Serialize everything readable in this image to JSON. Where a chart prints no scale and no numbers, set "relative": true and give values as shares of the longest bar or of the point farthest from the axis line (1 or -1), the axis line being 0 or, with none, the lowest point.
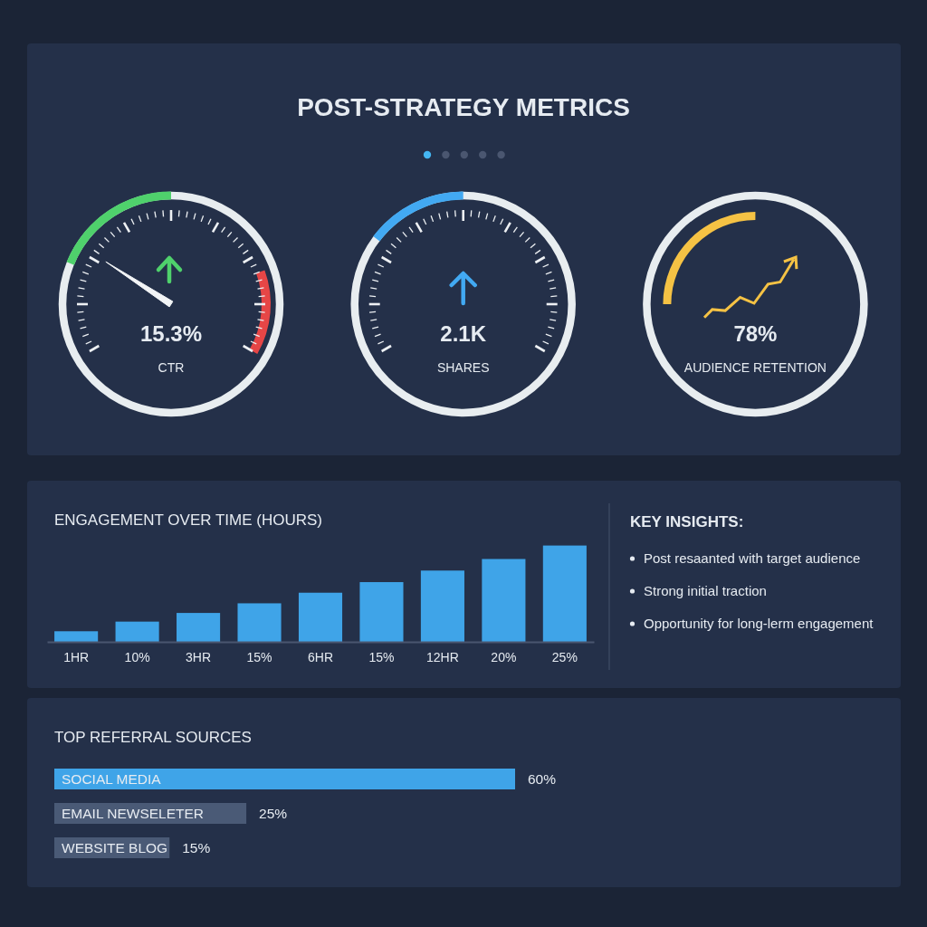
{
  "chart_data": [
    {
      "type": "other",
      "title": "POST-STRATEGY METRICS",
      "annotations": [
        "15.3%",
        "CTR",
        "2.1K",
        "SHARES",
        "78%",
        "AUDIENCE RETENTION"
      ]
    },
    {
      "type": "bar",
      "title": "ENGAGEMENT OVER TIME (HOURS)",
      "categories": [
        "1HR",
        "10%",
        "3HR",
        "15%",
        "6HR",
        "15%",
        "12HR",
        "20%",
        "25%"
      ],
      "values": [
        0.11,
        0.21,
        0.3,
        0.4,
        0.51,
        0.62,
        0.74,
        0.86,
        1
      ],
      "relative": true,
      "color": "#3fa4e8"
    },
    {
      "type": "other",
      "title": "KEY INSIGHTS:",
      "annotations": [
        "Post resaanted with target audience",
        "Strong initial traction",
        "Opportunity for long-lerm engagement"
      ]
    },
    {
      "type": "bar",
      "orientation": "horizontal",
      "title": "TOP REFERRAL SOURCES",
      "categories": [
        "SOCIAL MEDIA",
        "EMAIL NEWSELETER",
        "WEBSITE BLOG"
      ],
      "values": [
        60,
        25,
        15
      ],
      "colors": [
        "#3fa4e8",
        "#4a5a76",
        "#4a5a76"
      ],
      "value_labels": [
        "60%",
        "25%",
        "15%"
      ]
    }
  ]
}
